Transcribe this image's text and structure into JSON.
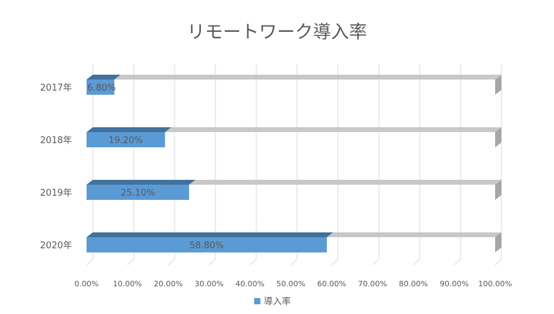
{
  "chart_data": {
    "type": "bar",
    "orientation": "horizontal",
    "style": "3d",
    "title": "リモートワーク導入率",
    "categories": [
      "2017年",
      "2018年",
      "2019年",
      "2020年"
    ],
    "series": [
      {
        "name": "導入率",
        "values": [
          6.8,
          19.2,
          25.1,
          58.8
        ],
        "labels": [
          "6.80%",
          "19.20%",
          "25.10%",
          "58.80%"
        ],
        "color": "#5b9bd5",
        "top_color": "#41719c"
      }
    ],
    "xlim": [
      0,
      100
    ],
    "x_ticks": [
      0,
      10,
      20,
      30,
      40,
      50,
      60,
      70,
      80,
      90,
      100
    ],
    "x_tick_labels": [
      "0.00%",
      "10.00%",
      "20.00%",
      "30.00%",
      "40.00%",
      "50.00%",
      "60.00%",
      "70.00%",
      "80.00%",
      "90.00%",
      "100.00%"
    ],
    "grid": true,
    "legend": {
      "position": "bottom",
      "entries": [
        "導入率"
      ]
    },
    "colors": {
      "track": "#c8c8c8",
      "track_side": "#a6a6a6",
      "grid": "#d9d9d9",
      "text": "#595959"
    }
  }
}
